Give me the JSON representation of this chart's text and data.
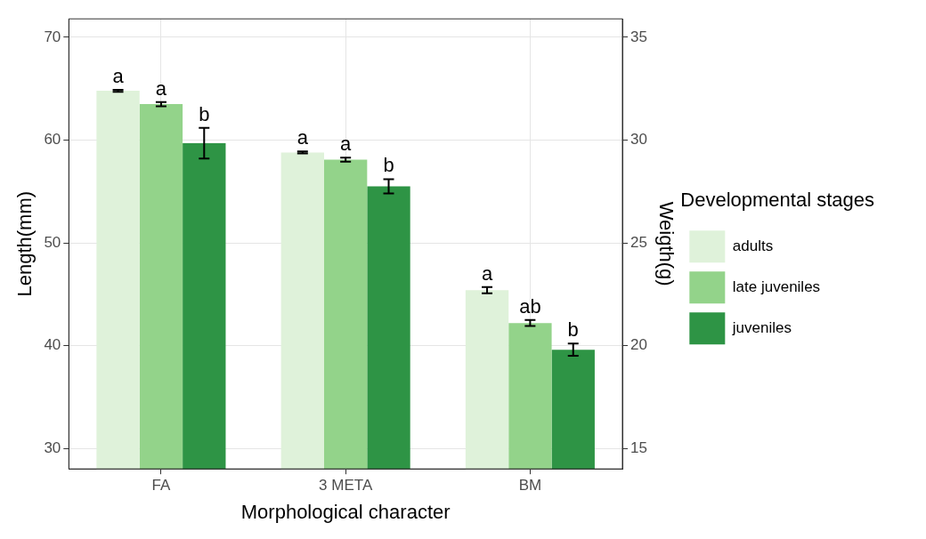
{
  "chart_data": {
    "type": "bar",
    "xlabel": "Morphological character",
    "ylabel": "Length(mm)",
    "y2label": "Weigth(g)",
    "legend_title": "Developmental stages",
    "categories": [
      "FA",
      "3 META",
      "BM"
    ],
    "series": [
      {
        "name": "adults",
        "color": "#dff2da",
        "values": [
          64.8,
          58.8,
          45.4
        ],
        "errors": [
          0.1,
          0.1,
          0.3
        ],
        "value_labels": [
          "a",
          "a",
          "a"
        ]
      },
      {
        "name": "late juveniles",
        "color": "#93d38a",
        "values": [
          63.5,
          58.1,
          42.2
        ],
        "errors": [
          0.2,
          0.2,
          0.3
        ],
        "value_labels": [
          "a",
          "a",
          "ab"
        ]
      },
      {
        "name": "juveniles",
        "color": "#2e9445",
        "values": [
          59.7,
          55.5,
          39.6
        ],
        "errors": [
          1.5,
          0.7,
          0.6
        ],
        "value_labels": [
          "b",
          "b",
          "b"
        ]
      }
    ],
    "ylim": [
      28,
      71.8
    ],
    "yticks": [
      30,
      40,
      50,
      60,
      70
    ],
    "y2lim": [
      14,
      35.9
    ],
    "y2ticks": [
      15,
      20,
      25,
      30,
      35
    ],
    "grid": true,
    "legend": "right"
  }
}
